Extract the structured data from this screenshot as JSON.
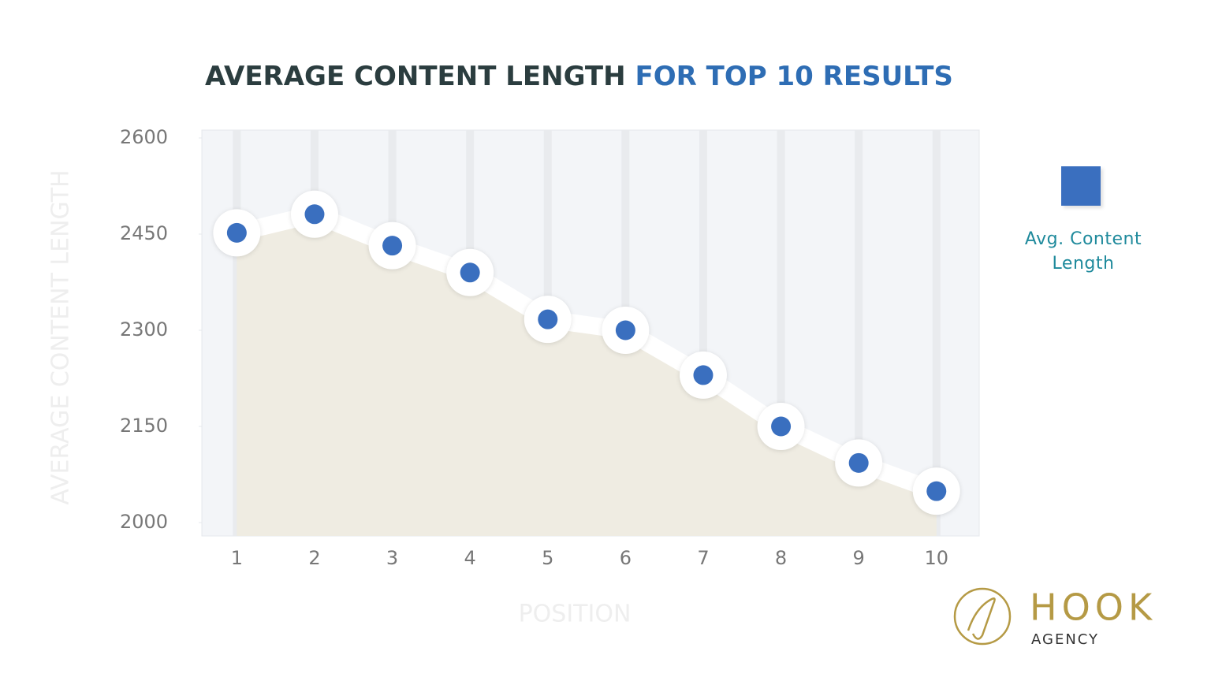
{
  "chart_data": {
    "type": "line",
    "title": "AVERAGE CONTENT LENGTH",
    "title_highlight": "FOR TOP 10 RESULTS",
    "x_label": "POSITION",
    "y_label": "AVERAGE CONTENT LENGTH",
    "categories": [
      "1",
      "2",
      "3",
      "4",
      "5",
      "6",
      "7",
      "8",
      "9",
      "10"
    ],
    "series": [
      {
        "name": "Avg. Content Length",
        "color": "#3a6fbf",
        "values": [
          2452,
          2481,
          2432,
          2390,
          2317,
          2300,
          2230,
          2150,
          2093,
          2049
        ]
      }
    ],
    "ylim": [
      2000,
      2600
    ],
    "yticks": [
      2000,
      2150,
      2300,
      2450,
      2600
    ],
    "legend": "right"
  },
  "logo": {
    "name": "HOOK",
    "tagline": "AGENCY"
  }
}
